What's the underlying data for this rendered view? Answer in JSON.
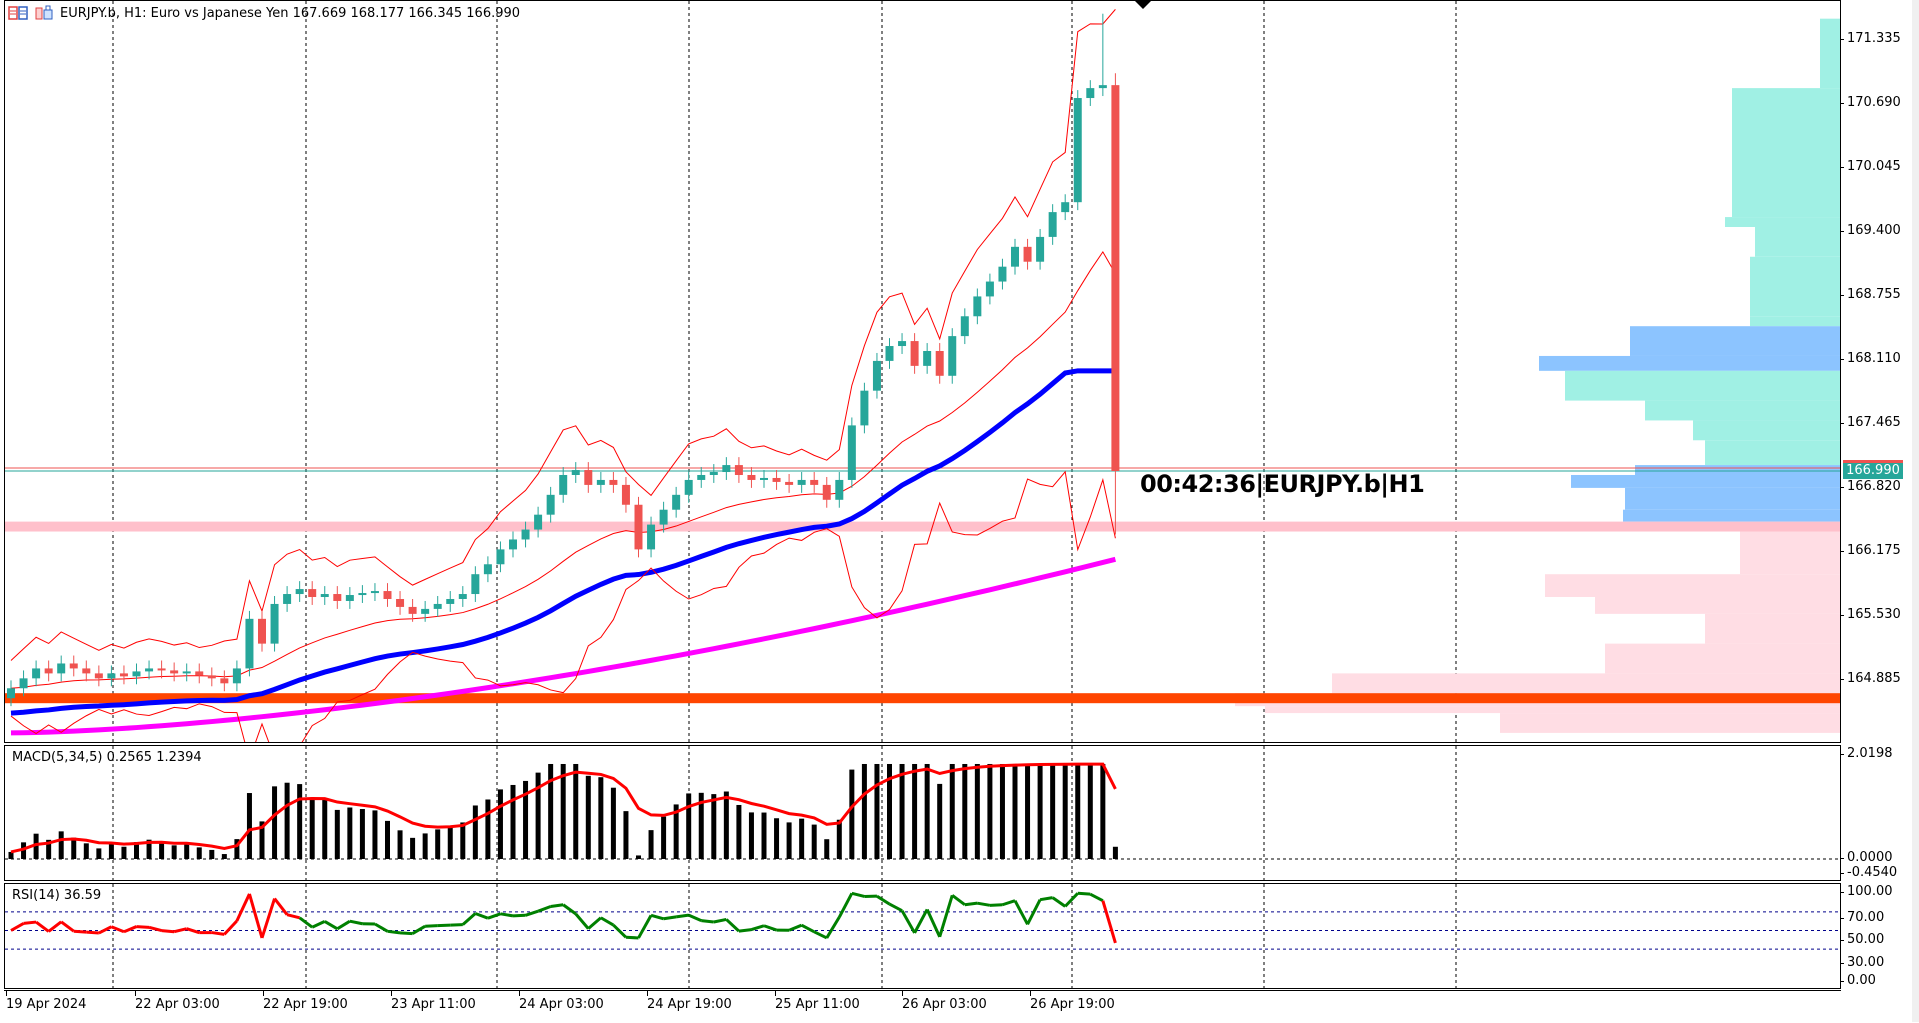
{
  "window": {
    "symbol_line": "EURJPY.b, H1:  Euro vs Japanese Yen  167.669 168.177 166.345 166.990",
    "symbol": "EURJPY.b",
    "timeframe": "H1",
    "description": "Euro vs Japanese Yen",
    "ohlc": {
      "open": "167.669",
      "high": "168.177",
      "low": "166.345",
      "close": "166.990"
    },
    "icons": [
      "chart-list-icon",
      "template-icon"
    ]
  },
  "overlay": {
    "countdown_label": "00:42:36|EURJPY.b|H1",
    "current_price": "166.990"
  },
  "colors": {
    "bull_candle": "#26a69a",
    "bear_candle": "#ef5350",
    "ema_fast": "#0000ff",
    "ema_slow": "#ff00ff",
    "bollinger": "#ff0000",
    "support_line": "#ff4500",
    "resistance_zone": "#ffc0cb",
    "vp_upper": "#a0f0e4",
    "vp_value_area": "#8cc4ff",
    "vp_lower": "#ffdde4",
    "macd_hist": "#000000",
    "macd_signal": "#ff0000",
    "rsi_up": "#008000",
    "rsi_down": "#ff0000",
    "rsi_levels": "#00008b",
    "bid_line": "#ef5350",
    "ask_line": "#26a69a"
  },
  "price_axis": {
    "ticks": [
      "171.335",
      "170.690",
      "170.045",
      "169.400",
      "168.755",
      "168.110",
      "167.465",
      "166.820",
      "166.175",
      "165.530",
      "164.885"
    ],
    "values": [
      171.335,
      170.69,
      170.045,
      169.4,
      168.755,
      168.11,
      167.465,
      166.82,
      166.175,
      165.53,
      164.885
    ]
  },
  "macd": {
    "title": "MACD(5,34,5) 0.2565 1.2394",
    "params": "5,34,5",
    "main_value": "0.2565",
    "signal_value": "1.2394",
    "axis_ticks": [
      "2.0198",
      "0.0000",
      "-0.4540"
    ]
  },
  "rsi": {
    "title": "RSI(14) 36.59",
    "period": "14",
    "value": "36.59",
    "axis_ticks": [
      "100.00",
      "70.00",
      "50.00",
      "30.00",
      "0.00"
    ]
  },
  "time_axis": {
    "labels": [
      "19 Apr 2024",
      "22 Apr 03:00",
      "22 Apr 19:00",
      "23 Apr 11:00",
      "24 Apr 03:00",
      "24 Apr 19:00",
      "25 Apr 11:00",
      "26 Apr 03:00",
      "26 Apr 19:00"
    ]
  },
  "chart_data": {
    "type": "candlestick",
    "title": "EURJPY.b, H1: Euro vs Japanese Yen",
    "ylim": [
      164.35,
      171.7
    ],
    "candles_close_path": [
      164.8,
      164.9,
      165.0,
      164.95,
      165.05,
      165.0,
      164.95,
      164.9,
      164.95,
      164.92,
      164.97,
      165.0,
      164.98,
      164.95,
      164.97,
      164.93,
      164.9,
      164.85,
      165.0,
      165.5,
      165.25,
      165.65,
      165.75,
      165.8,
      165.72,
      165.75,
      165.68,
      165.74,
      165.76,
      165.78,
      165.7,
      165.62,
      165.55,
      165.6,
      165.65,
      165.7,
      165.75,
      165.95,
      166.05,
      166.2,
      166.3,
      166.4,
      166.55,
      166.75,
      166.95,
      167.0,
      166.85,
      166.9,
      166.85,
      166.65,
      166.2,
      166.45,
      166.6,
      166.75,
      166.9,
      166.95,
      166.98,
      167.05,
      166.95,
      166.9,
      166.92,
      166.88,
      166.85,
      166.9,
      166.85,
      166.7,
      166.9,
      167.45,
      167.8,
      168.1,
      168.25,
      168.3,
      168.05,
      168.2,
      167.95,
      168.35,
      168.55,
      168.75,
      168.9,
      169.05,
      169.25,
      169.1,
      169.35,
      169.6,
      169.7,
      170.75,
      170.85,
      170.88,
      166.99
    ],
    "ema_fast_start": 164.5,
    "ema_fast_end": 168.0,
    "ema_slow_start": 164.35,
    "ema_slow_end": 166.1,
    "support_level": 164.7,
    "resistance_zone": [
      166.38,
      166.48
    ],
    "volume_profile_note": "Upper value area near 168.1, point of control near 166.9",
    "macd_range": [
      -0.454,
      2.0198
    ],
    "rsi_levels": [
      70,
      50,
      30
    ],
    "rsi_last": 36.59
  }
}
